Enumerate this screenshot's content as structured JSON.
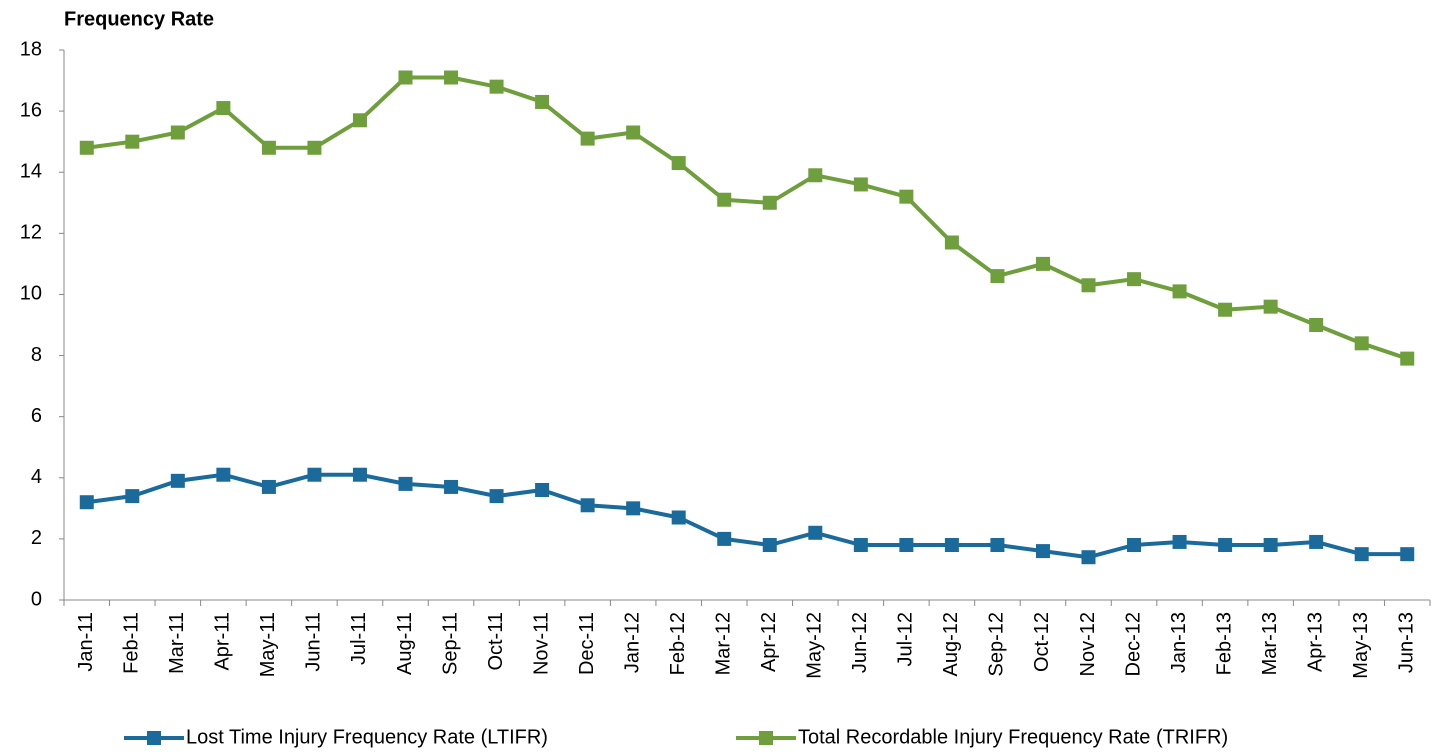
{
  "chart_data": {
    "type": "line",
    "title": "Frequency Rate",
    "categories": [
      "Jan-11",
      "Feb-11",
      "Mar-11",
      "Apr-11",
      "May-11",
      "Jun-11",
      "Jul-11",
      "Aug-11",
      "Sep-11",
      "Oct-11",
      "Nov-11",
      "Dec-11",
      "Jan-12",
      "Feb-12",
      "Mar-12",
      "Apr-12",
      "May-12",
      "Jun-12",
      "Jul-12",
      "Aug-12",
      "Sep-12",
      "Oct-12",
      "Nov-12",
      "Dec-12",
      "Jan-13",
      "Feb-13",
      "Mar-13",
      "Apr-13",
      "May-13",
      "Jun-13"
    ],
    "series": [
      {
        "name": "Lost Time Injury Frequency Rate (LTIFR)",
        "color": "#1b6a9c",
        "values": [
          3.2,
          3.4,
          3.9,
          4.1,
          3.7,
          4.1,
          4.1,
          3.8,
          3.7,
          3.4,
          3.6,
          3.1,
          3.0,
          2.7,
          2.0,
          1.8,
          2.2,
          1.8,
          1.8,
          1.8,
          1.8,
          1.6,
          1.4,
          1.8,
          1.9,
          1.8,
          1.8,
          1.9,
          1.5,
          1.5
        ]
      },
      {
        "name": "Total Recordable Injury Frequency Rate (TRIFR)",
        "color": "#6f9e3c",
        "values": [
          14.8,
          15.0,
          15.3,
          16.1,
          14.8,
          14.8,
          15.7,
          17.1,
          17.1,
          16.8,
          16.3,
          15.1,
          15.3,
          14.3,
          13.1,
          13.0,
          13.9,
          13.6,
          13.2,
          11.7,
          10.6,
          11.0,
          10.3,
          10.5,
          10.1,
          9.5,
          9.6,
          9.0,
          8.4,
          7.9
        ]
      }
    ],
    "ylim": [
      0,
      18
    ],
    "yticks": [
      0,
      2,
      4,
      6,
      8,
      10,
      12,
      14,
      16,
      18
    ],
    "grid": false,
    "legend": "bottom"
  }
}
